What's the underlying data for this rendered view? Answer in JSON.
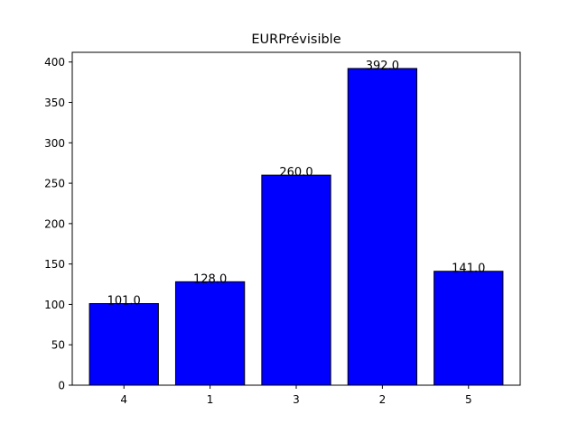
{
  "chart_data": {
    "type": "bar",
    "title": "EURPrévisible",
    "xlabel": "",
    "ylabel": "",
    "categories": [
      "4",
      "1",
      "3",
      "2",
      "5"
    ],
    "values": [
      101.0,
      128.0,
      260.0,
      392.0,
      141.0
    ],
    "value_labels": [
      "101.0",
      "128.0",
      "260.0",
      "392.0",
      "141.0"
    ],
    "ylim": [
      0,
      412
    ],
    "yticks": [
      0,
      50,
      100,
      150,
      200,
      250,
      300,
      350,
      400
    ],
    "grid": false,
    "legend": "none",
    "bar_color": "#0000ff",
    "bar_edge_color": "#000000"
  }
}
